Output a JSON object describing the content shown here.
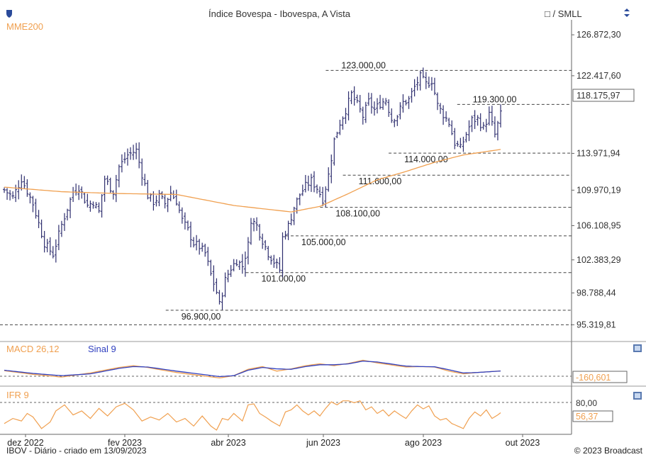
{
  "header": {
    "title": "Índice Bovespa - Ibovespa, A Vista",
    "scale_toggle": "□ / SMLL",
    "sort_icon": "up-down-arrows-icon",
    "logo_icon": "shield-logo-icon"
  },
  "footer": {
    "left": "IBOV - Diário - criado em 13/09/2023",
    "right": "© 2023 Broadcast"
  },
  "colors": {
    "candles": "#2e2e6e",
    "sma": "#f0a050",
    "macd": "#f0a050",
    "signal": "#3040c0",
    "ifr": "#f0a050"
  },
  "chart_data": [
    {
      "type": "candlestick",
      "panel": "price",
      "indicator_label": "MME200",
      "ylim": [
        93500,
        128500
      ],
      "y_ticks": [
        "126.872,30",
        "122.417,60",
        "118.175,97",
        "113.971,94",
        "109.970,19",
        "106.108,95",
        "102.383,29",
        "98.788,44",
        "95.319,81"
      ],
      "y_tick_values": [
        126872.3,
        122417.6,
        118175.97,
        113971.94,
        109970.19,
        106108.95,
        102383.29,
        98788.44,
        95319.81
      ],
      "last_price_label": "118.175,97",
      "x_ticks": [
        "dez 2022",
        "fev 2023",
        "abr 2023",
        "jun 2023",
        "ago 2023",
        "out 2023"
      ],
      "levels": [
        {
          "label": "123.000,00",
          "value": 123000,
          "from": 0.57,
          "to": 1.0
        },
        {
          "label": "119.300,00",
          "value": 119300,
          "from": 0.8,
          "to": 1.0
        },
        {
          "label": "114.000,00",
          "value": 114000,
          "from": 0.68,
          "to": 1.0
        },
        {
          "label": "111.600,00",
          "value": 111600,
          "from": 0.6,
          "to": 1.0
        },
        {
          "label": "108.100,00",
          "value": 108100,
          "from": 0.56,
          "to": 1.0
        },
        {
          "label": "105.000,00",
          "value": 105000,
          "from": 0.5,
          "to": 1.0
        },
        {
          "label": "101.000,00",
          "value": 101000,
          "from": 0.43,
          "to": 1.0
        },
        {
          "label": "96.900,00",
          "value": 96900,
          "from": 0.29,
          "to": 1.0
        },
        {
          "label": "",
          "value": 95319.81,
          "from": 0.0,
          "to": 1.0
        }
      ],
      "close_anchors": [
        [
          0,
          110000
        ],
        [
          3,
          109200
        ],
        [
          6,
          111200
        ],
        [
          10,
          108500
        ],
        [
          14,
          104200
        ],
        [
          17,
          103000
        ],
        [
          20,
          106200
        ],
        [
          24,
          109800
        ],
        [
          26,
          110300
        ],
        [
          29,
          108300
        ],
        [
          31,
          108700
        ],
        [
          33,
          107600
        ],
        [
          35,
          111200
        ],
        [
          38,
          109800
        ],
        [
          40,
          112500
        ],
        [
          43,
          113800
        ],
        [
          46,
          114300
        ],
        [
          48,
          111700
        ],
        [
          50,
          109400
        ],
        [
          52,
          108700
        ],
        [
          54,
          109300
        ],
        [
          56,
          108500
        ],
        [
          58,
          109700
        ],
        [
          60,
          108800
        ],
        [
          62,
          106700
        ],
        [
          64,
          105600
        ],
        [
          66,
          104200
        ],
        [
          68,
          103800
        ],
        [
          70,
          103100
        ],
        [
          72,
          100800
        ],
        [
          74,
          98900
        ],
        [
          75,
          97500
        ],
        [
          77,
          100200
        ],
        [
          79,
          101500
        ],
        [
          81,
          102300
        ],
        [
          83,
          101700
        ],
        [
          85,
          104000
        ],
        [
          86,
          106800
        ],
        [
          88,
          106100
        ],
        [
          90,
          104500
        ],
        [
          92,
          103100
        ],
        [
          94,
          102200
        ],
        [
          96,
          101300
        ],
        [
          97,
          104800
        ],
        [
          99,
          106100
        ],
        [
          101,
          108100
        ],
        [
          103,
          109500
        ],
        [
          105,
          110400
        ],
        [
          107,
          111000
        ],
        [
          109,
          110200
        ],
        [
          111,
          109000
        ],
        [
          113,
          111600
        ],
        [
          115,
          115400
        ],
        [
          117,
          117300
        ],
        [
          119,
          118700
        ],
        [
          121,
          120400
        ],
        [
          123,
          119300
        ],
        [
          125,
          118000
        ],
        [
          127,
          119600
        ],
        [
          129,
          118700
        ],
        [
          131,
          119400
        ],
        [
          133,
          119800
        ],
        [
          135,
          117700
        ],
        [
          137,
          118100
        ],
        [
          139,
          119500
        ],
        [
          141,
          119800
        ],
        [
          143,
          121200
        ],
        [
          145,
          122300
        ],
        [
          147,
          121500
        ],
        [
          149,
          121900
        ],
        [
          151,
          119200
        ],
        [
          153,
          118200
        ],
        [
          155,
          117300
        ],
        [
          157,
          115100
        ],
        [
          159,
          114500
        ],
        [
          161,
          116100
        ],
        [
          163,
          117600
        ],
        [
          165,
          117700
        ],
        [
          167,
          116700
        ],
        [
          169,
          118200
        ],
        [
          171,
          116000
        ],
        [
          173,
          118200
        ]
      ],
      "sma_anchors": [
        [
          0,
          110300
        ],
        [
          20,
          109800
        ],
        [
          40,
          109600
        ],
        [
          60,
          109500
        ],
        [
          80,
          108300
        ],
        [
          100,
          107600
        ],
        [
          110,
          108200
        ],
        [
          120,
          109600
        ],
        [
          130,
          111100
        ],
        [
          140,
          112000
        ],
        [
          150,
          113000
        ],
        [
          160,
          113800
        ],
        [
          173,
          114400
        ]
      ]
    },
    {
      "type": "line",
      "panel": "macd",
      "title": "MACD 26,12",
      "signal_title": "Sinal 9",
      "ylim": [
        -3500,
        3500
      ],
      "value_label": "-160,601",
      "macd_anchors": [
        [
          0,
          -100
        ],
        [
          10,
          -900
        ],
        [
          20,
          -1500
        ],
        [
          30,
          -600
        ],
        [
          40,
          600
        ],
        [
          45,
          1000
        ],
        [
          50,
          600
        ],
        [
          60,
          -500
        ],
        [
          70,
          -1300
        ],
        [
          75,
          -1700
        ],
        [
          80,
          -1200
        ],
        [
          85,
          200
        ],
        [
          90,
          800
        ],
        [
          95,
          -200
        ],
        [
          100,
          300
        ],
        [
          105,
          1000
        ],
        [
          110,
          1400
        ],
        [
          115,
          1000
        ],
        [
          120,
          1500
        ],
        [
          125,
          2200
        ],
        [
          130,
          1600
        ],
        [
          140,
          700
        ],
        [
          145,
          800
        ],
        [
          150,
          700
        ],
        [
          155,
          -200
        ],
        [
          160,
          -800
        ],
        [
          165,
          -500
        ],
        [
          173,
          -160
        ]
      ],
      "signal_anchors": [
        [
          0,
          0
        ],
        [
          10,
          -700
        ],
        [
          20,
          -1200
        ],
        [
          30,
          -800
        ],
        [
          40,
          400
        ],
        [
          45,
          800
        ],
        [
          50,
          700
        ],
        [
          60,
          -200
        ],
        [
          70,
          -1000
        ],
        [
          75,
          -1400
        ],
        [
          80,
          -1200
        ],
        [
          85,
          0
        ],
        [
          90,
          600
        ],
        [
          95,
          300
        ],
        [
          100,
          200
        ],
        [
          105,
          800
        ],
        [
          110,
          1200
        ],
        [
          115,
          1200
        ],
        [
          120,
          1400
        ],
        [
          125,
          2000
        ],
        [
          130,
          1800
        ],
        [
          140,
          900
        ],
        [
          145,
          800
        ],
        [
          150,
          750
        ],
        [
          155,
          100
        ],
        [
          160,
          -600
        ],
        [
          165,
          -500
        ],
        [
          173,
          -170
        ]
      ]
    },
    {
      "type": "line",
      "panel": "ifr",
      "title": "IFR 9",
      "ylim": [
        15,
        88
      ],
      "reference_label": "80,00",
      "reference_value": 80,
      "value_label": "56,37",
      "ifr_anchors": [
        [
          0,
          35
        ],
        [
          3,
          45
        ],
        [
          6,
          40
        ],
        [
          8,
          55
        ],
        [
          10,
          48
        ],
        [
          13,
          25
        ],
        [
          16,
          38
        ],
        [
          18,
          60
        ],
        [
          21,
          72
        ],
        [
          24,
          52
        ],
        [
          27,
          60
        ],
        [
          30,
          45
        ],
        [
          33,
          65
        ],
        [
          36,
          50
        ],
        [
          39,
          68
        ],
        [
          42,
          75
        ],
        [
          45,
          62
        ],
        [
          48,
          40
        ],
        [
          51,
          48
        ],
        [
          54,
          42
        ],
        [
          57,
          55
        ],
        [
          60,
          38
        ],
        [
          63,
          45
        ],
        [
          66,
          30
        ],
        [
          69,
          50
        ],
        [
          72,
          30
        ],
        [
          74,
          22
        ],
        [
          76,
          45
        ],
        [
          78,
          42
        ],
        [
          80,
          55
        ],
        [
          83,
          40
        ],
        [
          85,
          72
        ],
        [
          87,
          74
        ],
        [
          89,
          55
        ],
        [
          91,
          48
        ],
        [
          93,
          40
        ],
        [
          96,
          30
        ],
        [
          98,
          58
        ],
        [
          100,
          62
        ],
        [
          102,
          72
        ],
        [
          104,
          60
        ],
        [
          106,
          52
        ],
        [
          108,
          60
        ],
        [
          110,
          50
        ],
        [
          112,
          65
        ],
        [
          114,
          78
        ],
        [
          116,
          72
        ],
        [
          118,
          80
        ],
        [
          120,
          80
        ],
        [
          122,
          76
        ],
        [
          124,
          80
        ],
        [
          126,
          62
        ],
        [
          128,
          68
        ],
        [
          130,
          55
        ],
        [
          132,
          62
        ],
        [
          134,
          50
        ],
        [
          136,
          60
        ],
        [
          138,
          52
        ],
        [
          140,
          45
        ],
        [
          142,
          60
        ],
        [
          144,
          72
        ],
        [
          146,
          64
        ],
        [
          148,
          70
        ],
        [
          150,
          50
        ],
        [
          152,
          42
        ],
        [
          154,
          45
        ],
        [
          156,
          35
        ],
        [
          158,
          30
        ],
        [
          160,
          25
        ],
        [
          162,
          45
        ],
        [
          164,
          58
        ],
        [
          166,
          50
        ],
        [
          168,
          62
        ],
        [
          170,
          45
        ],
        [
          172,
          52
        ],
        [
          173,
          56.37
        ]
      ]
    }
  ]
}
